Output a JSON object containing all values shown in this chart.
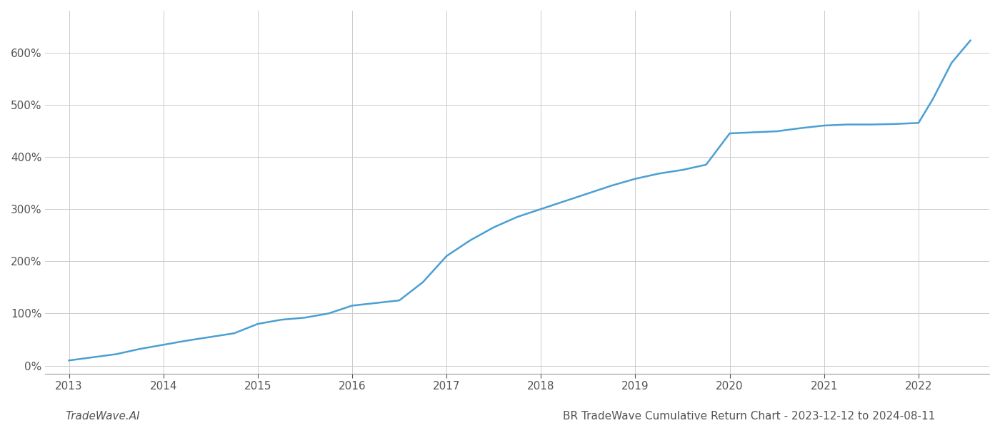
{
  "title": "BR TradeWave Cumulative Return Chart - 2023-12-12 to 2024-08-11",
  "watermark_left": "TradeWave.AI",
  "line_color": "#4a9fd4",
  "line_width": 1.8,
  "background_color": "#ffffff",
  "grid_color": "#cccccc",
  "x_labels": [
    "2013",
    "2014",
    "2015",
    "2016",
    "2017",
    "2018",
    "2019",
    "2020",
    "2021",
    "2022"
  ],
  "x_values": [
    2013.0,
    2013.25,
    2013.5,
    2013.75,
    2014.0,
    2014.25,
    2014.5,
    2014.75,
    2015.0,
    2015.25,
    2015.5,
    2015.75,
    2016.0,
    2016.25,
    2016.5,
    2016.75,
    2017.0,
    2017.25,
    2017.5,
    2017.75,
    2018.0,
    2018.25,
    2018.5,
    2018.75,
    2019.0,
    2019.25,
    2019.5,
    2019.75,
    2020.0,
    2020.25,
    2020.5,
    2020.75,
    2021.0,
    2021.25,
    2021.5,
    2021.75,
    2022.0,
    2022.15,
    2022.35,
    2022.55
  ],
  "y_values": [
    10,
    16,
    22,
    32,
    40,
    48,
    55,
    62,
    80,
    88,
    92,
    100,
    115,
    120,
    125,
    160,
    210,
    240,
    265,
    285,
    300,
    315,
    330,
    345,
    358,
    368,
    375,
    385,
    445,
    447,
    449,
    455,
    460,
    462,
    462,
    463,
    465,
    510,
    580,
    623
  ],
  "ylim": [
    -15,
    680
  ],
  "yticks": [
    0,
    100,
    200,
    300,
    400,
    500,
    600
  ],
  "xlim": [
    2012.75,
    2022.75
  ],
  "title_fontsize": 11,
  "watermark_fontsize": 11,
  "tick_fontsize": 11
}
